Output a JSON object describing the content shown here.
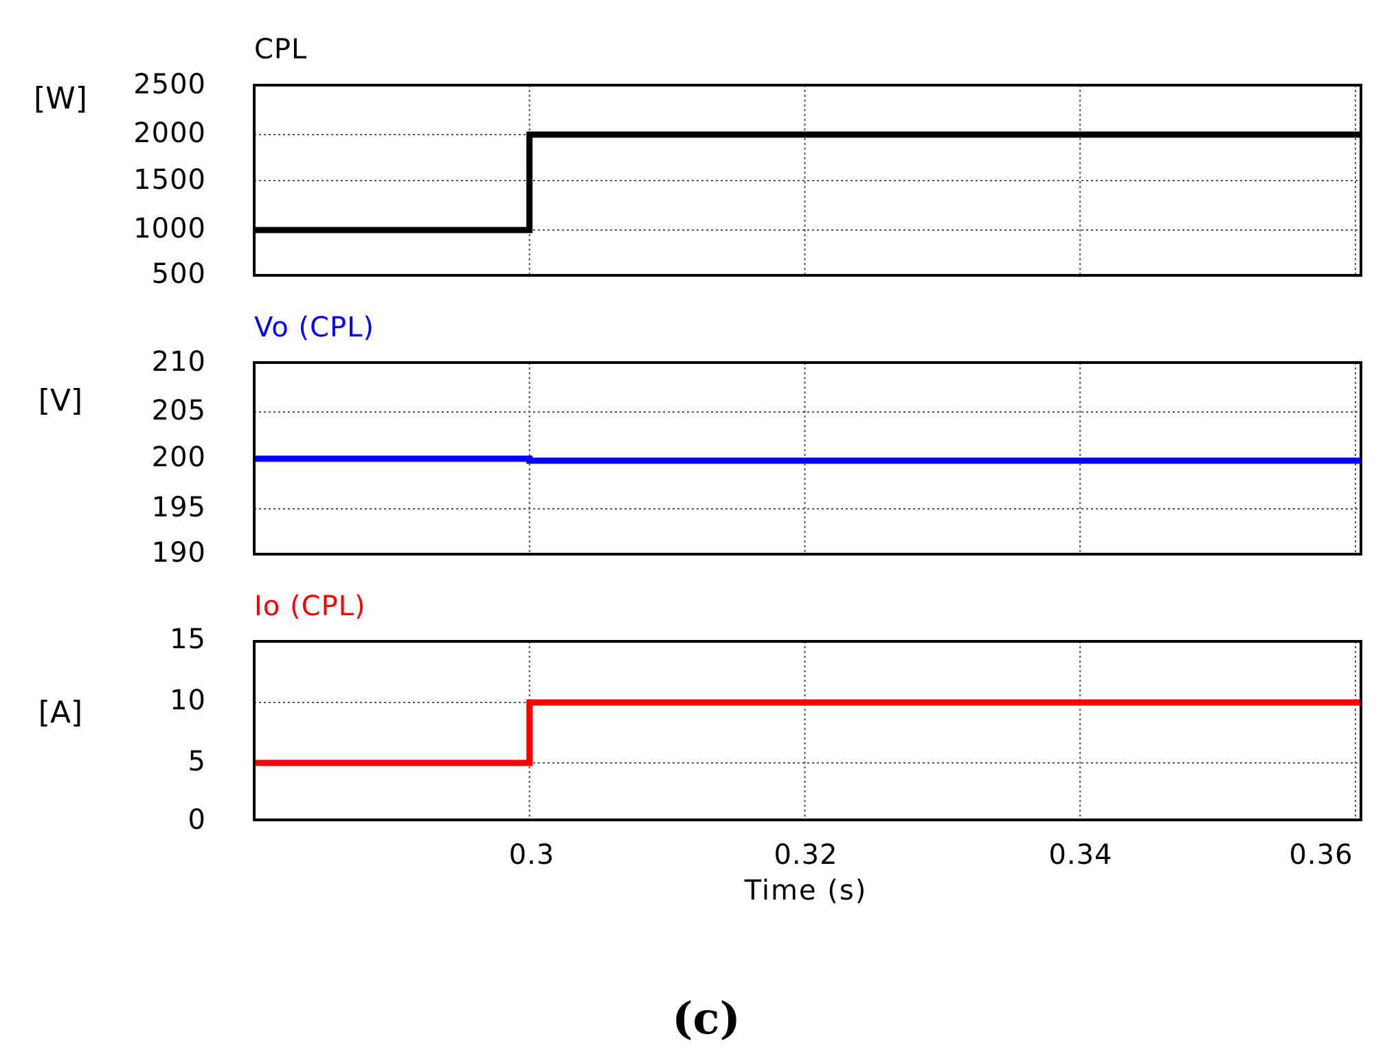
{
  "chart_data": [
    {
      "type": "line",
      "title": "CPL",
      "ylabel": "[W]",
      "yticks": [
        2500,
        2000,
        1500,
        1000,
        500
      ],
      "ylim": [
        500,
        2500
      ],
      "xlim": [
        0.28,
        0.3604
      ],
      "color": "#000000",
      "series": [
        {
          "name": "CPL",
          "x": [
            0.28,
            0.3,
            0.3,
            0.3604
          ],
          "y": [
            1000,
            1000,
            2000,
            2000
          ]
        }
      ]
    },
    {
      "type": "line",
      "title": "Vo (CPL)",
      "ylabel": "[V]",
      "yticks": [
        210,
        205,
        200,
        195,
        190
      ],
      "ylim": [
        190,
        210
      ],
      "xlim": [
        0.28,
        0.3604
      ],
      "color": "#0000ff",
      "series": [
        {
          "name": "Vo (CPL)",
          "x": [
            0.28,
            0.3,
            0.3,
            0.3604
          ],
          "y": [
            200,
            200,
            199.8,
            199.8
          ]
        }
      ]
    },
    {
      "type": "line",
      "title": "Io (CPL)",
      "ylabel": "[A]",
      "yticks": [
        15,
        10,
        5,
        0
      ],
      "ylim": [
        0,
        15
      ],
      "xlim": [
        0.28,
        0.3604
      ],
      "color": "#ff0000",
      "series": [
        {
          "name": "Io (CPL)",
          "x": [
            0.28,
            0.3,
            0.3,
            0.3604
          ],
          "y": [
            5,
            5,
            10,
            10
          ]
        }
      ]
    }
  ],
  "xaxis": {
    "ticks": [
      "0.3",
      "0.32",
      "0.34",
      "0.36"
    ],
    "tick_values": [
      0.3,
      0.32,
      0.34,
      0.36
    ],
    "label": "Time (s)"
  },
  "caption": "(c)"
}
